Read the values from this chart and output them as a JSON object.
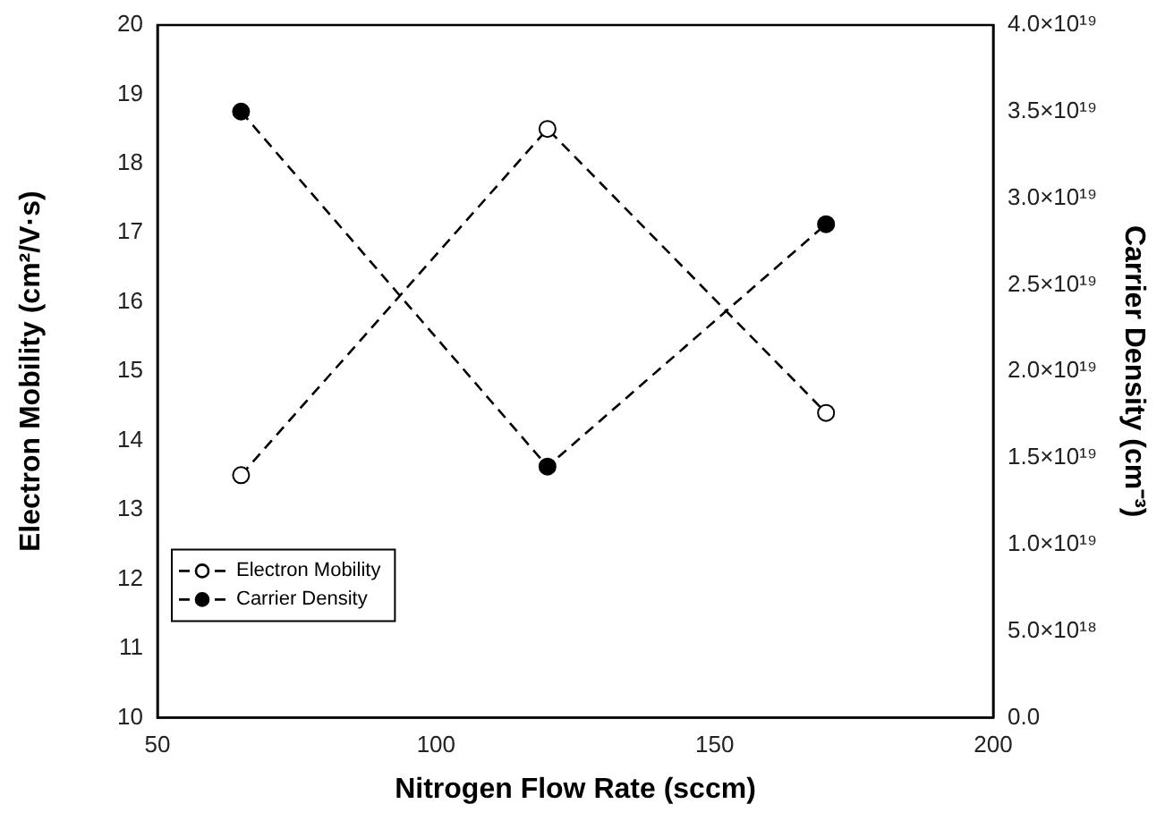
{
  "chart_data": {
    "type": "line",
    "xlabel": "Nitrogen Flow Rate (sccm)",
    "ylabel": "Electron Mobility (cm²/V·s)",
    "y2label": "Carrier Density (cm⁻³)",
    "xlim": [
      50,
      200
    ],
    "xticks": [
      50,
      100,
      150,
      200
    ],
    "ylim": [
      10,
      20
    ],
    "yticks": [
      10,
      11,
      12,
      13,
      14,
      15,
      16,
      17,
      18,
      19,
      20
    ],
    "y2lim": [
      0,
      4e+19
    ],
    "y2ticks": [
      {
        "value": 0,
        "label": "0.0"
      },
      {
        "value": 5e+18,
        "label": "5.0×10¹⁸"
      },
      {
        "value": 1e+19,
        "label": "1.0×10¹⁹"
      },
      {
        "value": 1.5e+19,
        "label": "1.5×10¹⁹"
      },
      {
        "value": 2e+19,
        "label": "2.0×10¹⁹"
      },
      {
        "value": 2.5e+19,
        "label": "2.5×10¹⁹"
      },
      {
        "value": 3e+19,
        "label": "3.0×10¹⁹"
      },
      {
        "value": 3.5e+19,
        "label": "3.5×10¹⁹"
      },
      {
        "value": 4e+19,
        "label": "4.0×10¹⁹"
      }
    ],
    "x": [
      65,
      120,
      170
    ],
    "series": [
      {
        "name": "Electron Mobility",
        "color": "#000000",
        "values": [
          13.5,
          18.5,
          14.4
        ]
      },
      {
        "name": "Carrier Density",
        "color": "#000000",
        "axis": "y2",
        "values": [
          3.5e+19,
          1.45e+19,
          2.85e+19
        ]
      }
    ],
    "marker": "circle",
    "line_style": "dashed",
    "grid": false,
    "legend": "bottom left"
  }
}
